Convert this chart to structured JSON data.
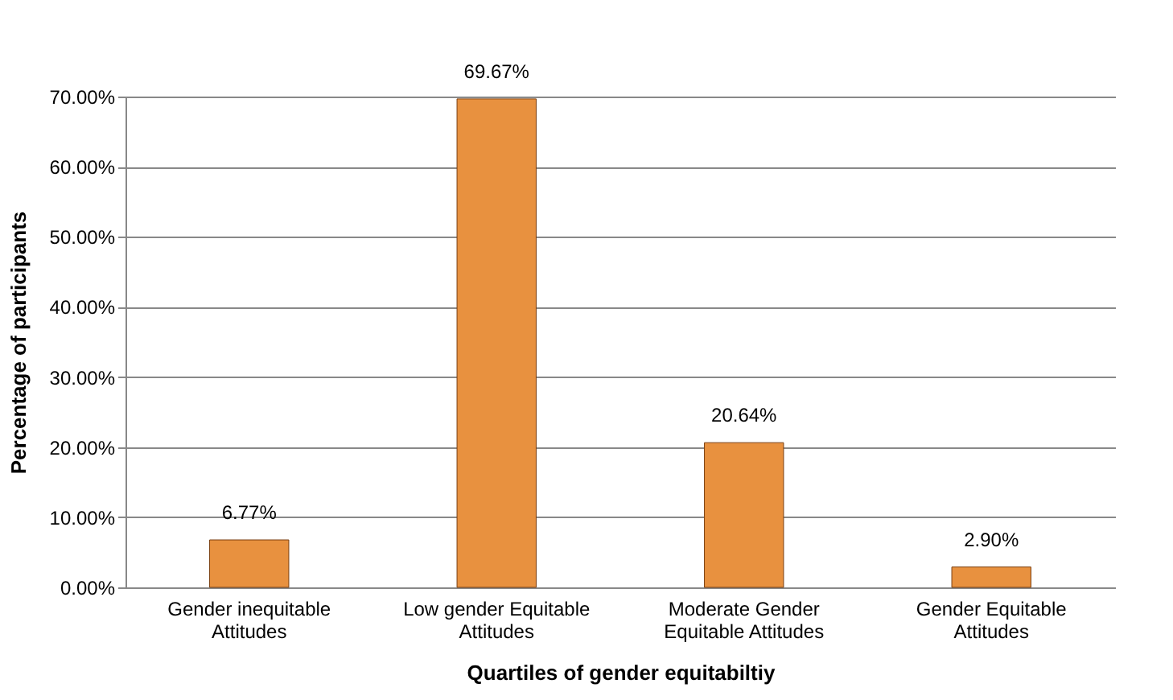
{
  "chart_data": {
    "type": "bar",
    "xlabel": "Quartiles of gender equitabiltiy",
    "ylabel": "Percentage of participants",
    "categories": [
      "Gender inequitable Attitudes",
      "Low gender Equitable Attitudes",
      "Moderate Gender Equitable Attitudes",
      "Gender Equitable Attitudes"
    ],
    "values": [
      6.77,
      69.67,
      20.64,
      2.9
    ],
    "value_labels": [
      "6.77%",
      "69.67%",
      "20.64%",
      "2.90%"
    ],
    "color": "#e8913f",
    "ylim": [
      0,
      70
    ],
    "yticks": [
      {
        "value": 0,
        "label": "0.00%"
      },
      {
        "value": 10,
        "label": "10.00%"
      },
      {
        "value": 20,
        "label": "20.00%"
      },
      {
        "value": 30,
        "label": "30.00%"
      },
      {
        "value": 40,
        "label": "40.00%"
      },
      {
        "value": 50,
        "label": "50.00%"
      },
      {
        "value": 60,
        "label": "60.00%"
      },
      {
        "value": 70,
        "label": "70.00%"
      }
    ],
    "grid": "y"
  }
}
